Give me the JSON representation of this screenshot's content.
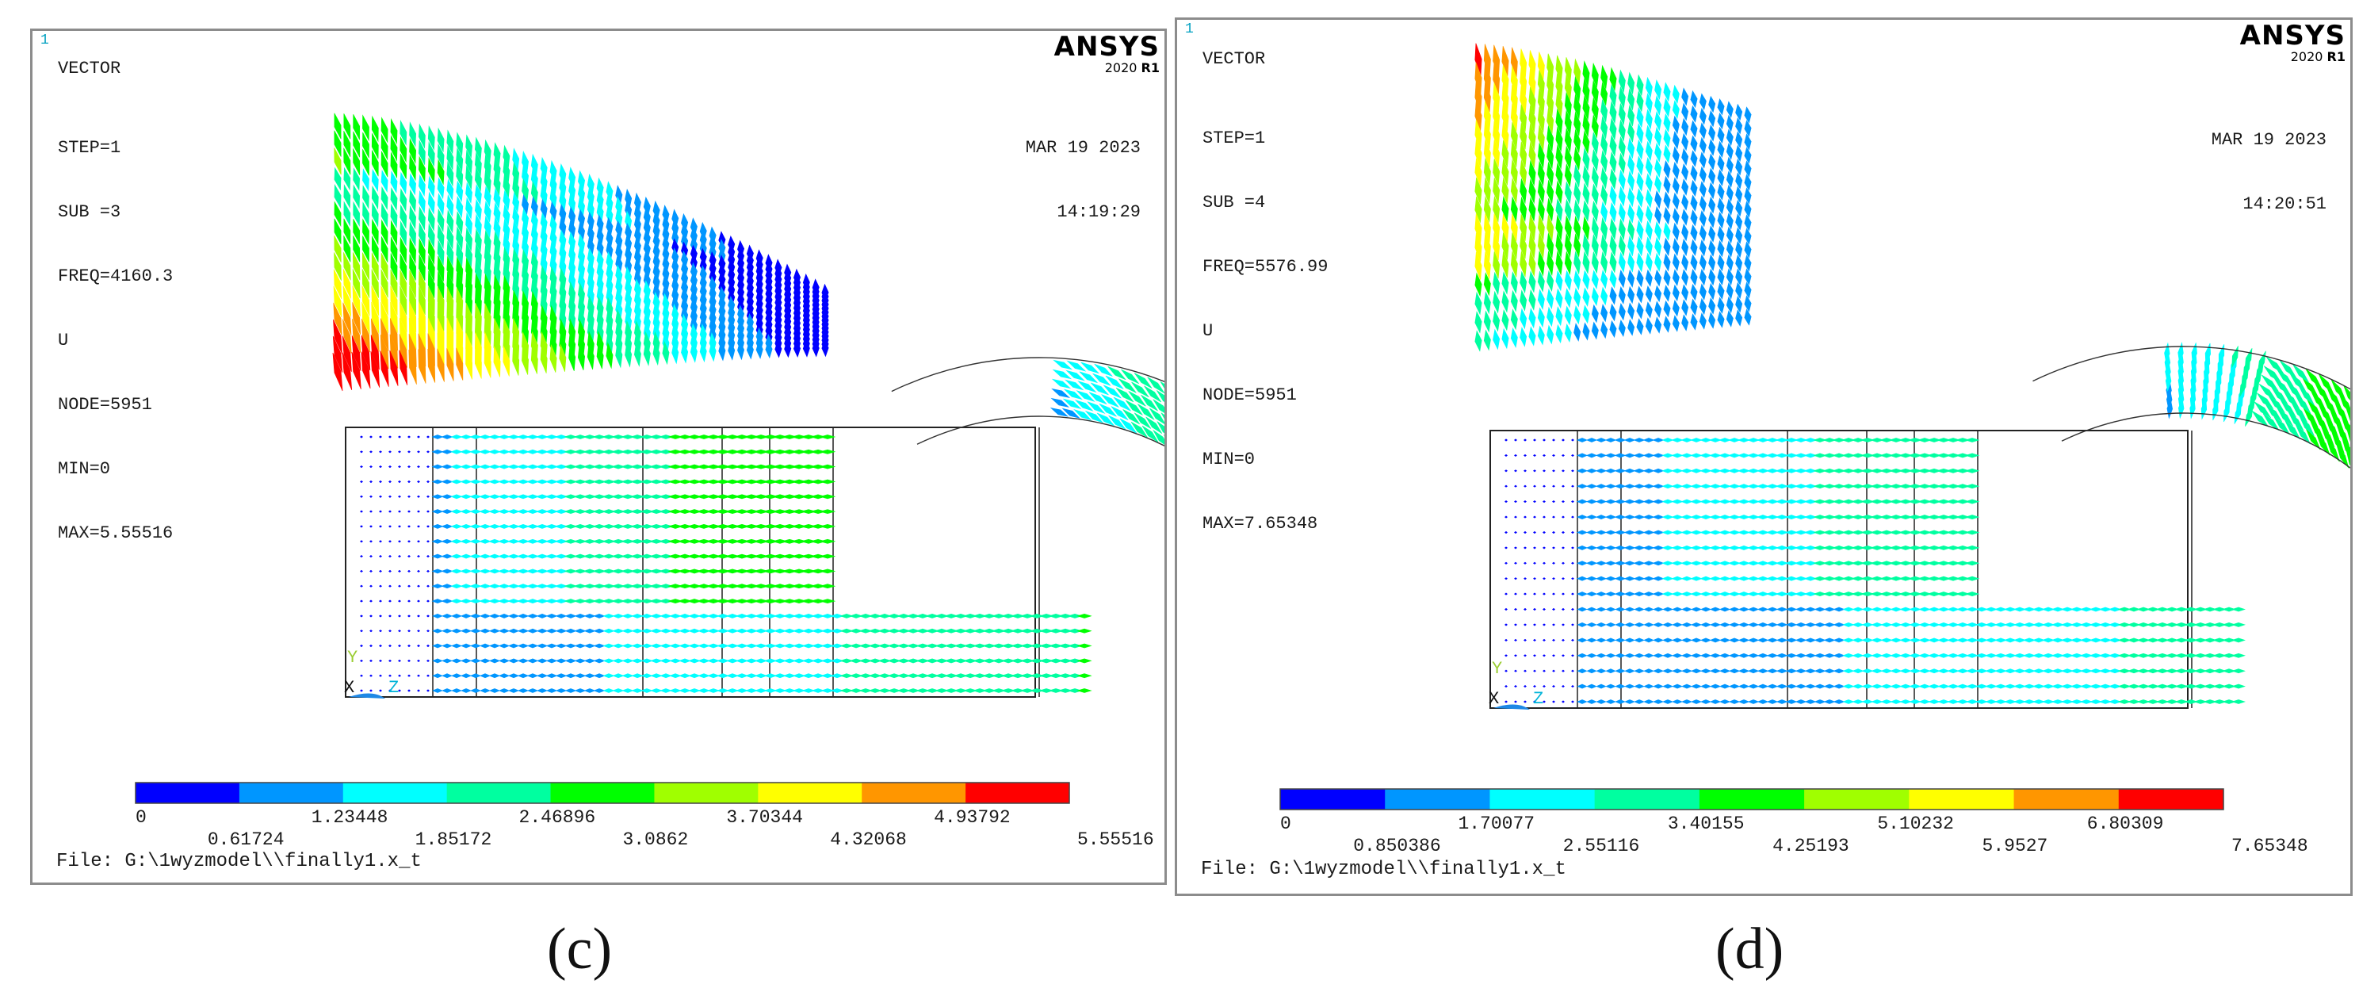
{
  "panels": [
    {
      "id": "c",
      "window_number": "1",
      "label_type": "VECTOR",
      "info_lines": [
        "STEP=1",
        "SUB =3",
        "FREQ=4160.3",
        "U",
        "NODE=5951",
        "MIN=0",
        "MAX=5.55516"
      ],
      "brand": "ANSYS",
      "version_year": "2020",
      "version_release": "R1",
      "date": "MAR 19 2023",
      "time": "14:19:29",
      "legend_colors": [
        "#0000ff",
        "#0096ff",
        "#00ffff",
        "#00ffa0",
        "#00ff00",
        "#a0ff00",
        "#ffff00",
        "#ff9600",
        "#ff0000"
      ],
      "legend_values_top": [
        "0",
        "1.23448",
        "2.46896",
        "3.70344",
        "4.93792"
      ],
      "legend_values_bottom": [
        "0.61724",
        "1.85172",
        "3.0862",
        "4.32068",
        "5.55516"
      ],
      "file_line": "File: G:\\1wyzmodel\\\\finally1.x_t",
      "axis_labels": [
        "Y",
        "X",
        "Z"
      ],
      "caption": "(c)"
    },
    {
      "id": "d",
      "window_number": "1",
      "label_type": "VECTOR",
      "info_lines": [
        "STEP=1",
        "SUB =4",
        "FREQ=5576.99",
        "U",
        "NODE=5951",
        "MIN=0",
        "MAX=7.65348"
      ],
      "brand": "ANSYS",
      "version_year": "2020",
      "version_release": "R1",
      "date": "MAR 19 2023",
      "time": "14:20:51",
      "legend_colors": [
        "#0000ff",
        "#0096ff",
        "#00ffff",
        "#00ffa0",
        "#00ff00",
        "#a0ff00",
        "#ffff00",
        "#ff9600",
        "#ff0000"
      ],
      "legend_values_top": [
        "0",
        "1.70077",
        "3.40155",
        "5.10232",
        "6.80309"
      ],
      "legend_values_bottom": [
        "0.850386",
        "2.55116",
        "4.25193",
        "5.9527",
        "7.65348"
      ],
      "file_line": "File: G:\\1wyzmodel\\\\finally1.x_t",
      "axis_labels": [
        "Y",
        "X",
        "Z"
      ],
      "caption": "(d)"
    }
  ]
}
